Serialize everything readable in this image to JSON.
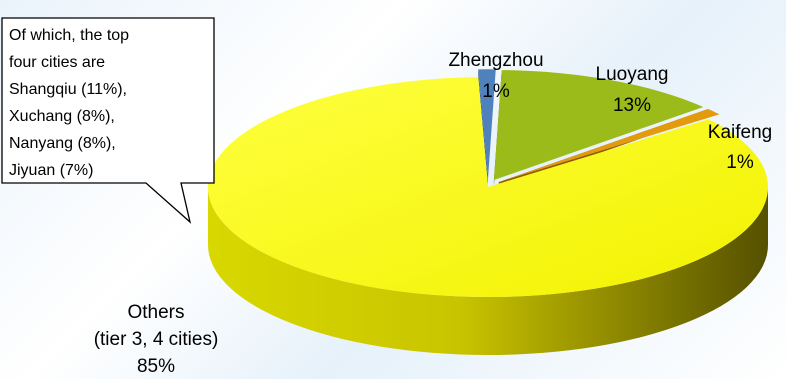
{
  "chart_data": {
    "type": "pie",
    "title": "",
    "slices": [
      {
        "key": "zhengzhou",
        "label": "Zhengzhou",
        "value": 1,
        "pct_label": "1%",
        "color": "#4f81bd"
      },
      {
        "key": "luoyang",
        "label": "Luoyang",
        "value": 13,
        "pct_label": "13%",
        "color": "#9bbb1a"
      },
      {
        "key": "kaifeng",
        "label": "Kaifeng",
        "value": 1,
        "pct_label": "1%",
        "color": "#e39a0b"
      },
      {
        "key": "others",
        "label": "Others\n(tier 3, 4 cities)",
        "value": 85,
        "pct_label": "85%",
        "color": "#ffff00"
      }
    ],
    "style": "3d-exploded",
    "legend": "none"
  },
  "callout": {
    "lines": [
      "Of which, the  top",
      "four cities are",
      "Shangqiu (11%),",
      "Xuchang (8%),",
      "Nanyang (8%),",
      "Jiyuan (7%)"
    ]
  }
}
